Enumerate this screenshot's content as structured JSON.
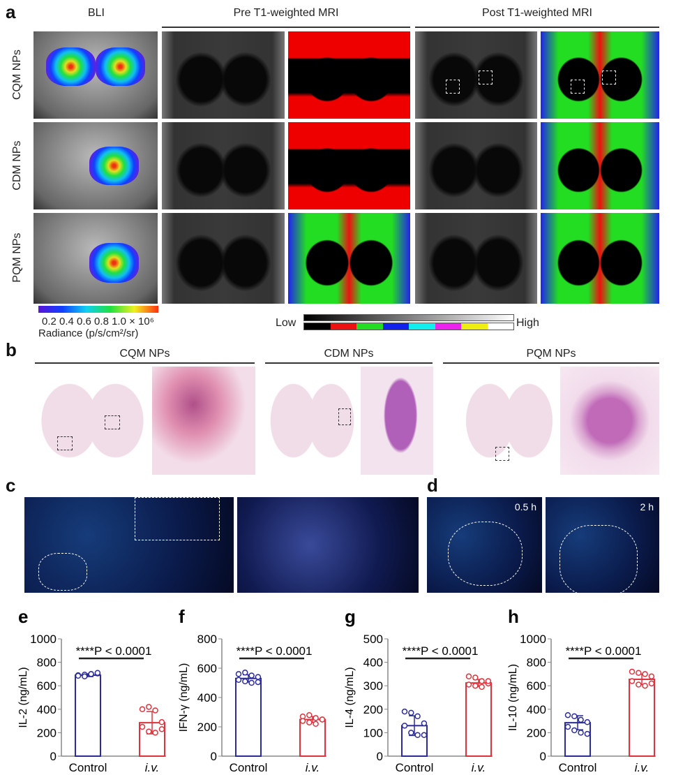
{
  "panel_a": {
    "letter": "a",
    "col_headers": {
      "bli": "BLI",
      "pre": "Pre T1-weighted MRI",
      "post": "Post T1-weighted MRI"
    },
    "rows": [
      "CQM NPs",
      "CDM NPs",
      "PQM NPs"
    ],
    "bli_colorbar": {
      "ticks": "0.2  0.4  0.6  0.8  1.0 × 10⁶",
      "label": "Radiance (p/s/cm²/sr)"
    },
    "mri_scale": {
      "low": "Low",
      "high": "High",
      "colors": [
        "#000000",
        "#ee1111",
        "#22dd22",
        "#1122ee",
        "#11eeee",
        "#ee22ee",
        "#eeee11",
        "#ffffff"
      ]
    }
  },
  "panel_b": {
    "letter": "b",
    "headers": [
      "CQM NPs",
      "CDM NPs",
      "PQM NPs"
    ]
  },
  "panel_c": {
    "letter": "c"
  },
  "panel_d": {
    "letter": "d",
    "times": [
      "0.5 h",
      "2 h"
    ]
  },
  "chart_data": [
    {
      "letter": "e",
      "type": "bar",
      "ylabel": "IL-2 (ng/mL)",
      "ylim": [
        0,
        1000
      ],
      "yticks": [
        0,
        200,
        400,
        600,
        800,
        1000
      ],
      "categories": [
        "Control",
        "i.v."
      ],
      "means": [
        690,
        285
      ],
      "sd": [
        12,
        95
      ],
      "points": [
        [
          690,
          695,
          700,
          705,
          685,
          680,
          700,
          710
        ],
        [
          400,
          420,
          390,
          290,
          250,
          210,
          200,
          230
        ]
      ],
      "annotation": "****P < 0.0001"
    },
    {
      "letter": "f",
      "type": "bar",
      "ylabel": "IFN-γ (ng/mL)",
      "ylim": [
        0,
        800
      ],
      "yticks": [
        0,
        200,
        400,
        600,
        800
      ],
      "categories": [
        "Control",
        "i.v."
      ],
      "means": [
        530,
        250
      ],
      "sd": [
        25,
        20
      ],
      "points": [
        [
          560,
          570,
          550,
          540,
          520,
          510,
          500,
          505
        ],
        [
          270,
          280,
          260,
          250,
          240,
          230,
          220,
          250
        ]
      ],
      "annotation": "****P < 0.0001"
    },
    {
      "letter": "g",
      "type": "bar",
      "ylabel": "IL-4 (ng/mL)",
      "ylim": [
        0,
        500
      ],
      "yticks": [
        0,
        100,
        200,
        300,
        400,
        500
      ],
      "categories": [
        "Control",
        "i.v."
      ],
      "means": [
        130,
        312
      ],
      "sd": [
        42,
        15
      ],
      "points": [
        [
          190,
          185,
          170,
          140,
          130,
          100,
          90,
          90
        ],
        [
          340,
          335,
          320,
          310,
          305,
          300,
          295,
          320
        ]
      ],
      "annotation": "****P < 0.0001"
    },
    {
      "letter": "h",
      "type": "bar",
      "ylabel": "IL-10 (ng/mL)",
      "ylim": [
        0,
        1000
      ],
      "yticks": [
        0,
        200,
        400,
        600,
        800,
        1000
      ],
      "categories": [
        "Control",
        "i.v."
      ],
      "means": [
        285,
        655
      ],
      "sd": [
        60,
        45
      ],
      "points": [
        [
          350,
          340,
          310,
          290,
          250,
          220,
          200,
          190
        ],
        [
          720,
          710,
          700,
          680,
          640,
          610,
          600,
          620
        ]
      ],
      "annotation": "****P < 0.0001"
    }
  ],
  "colors": {
    "control": "#2b2b9c",
    "iv": "#e0323c"
  }
}
